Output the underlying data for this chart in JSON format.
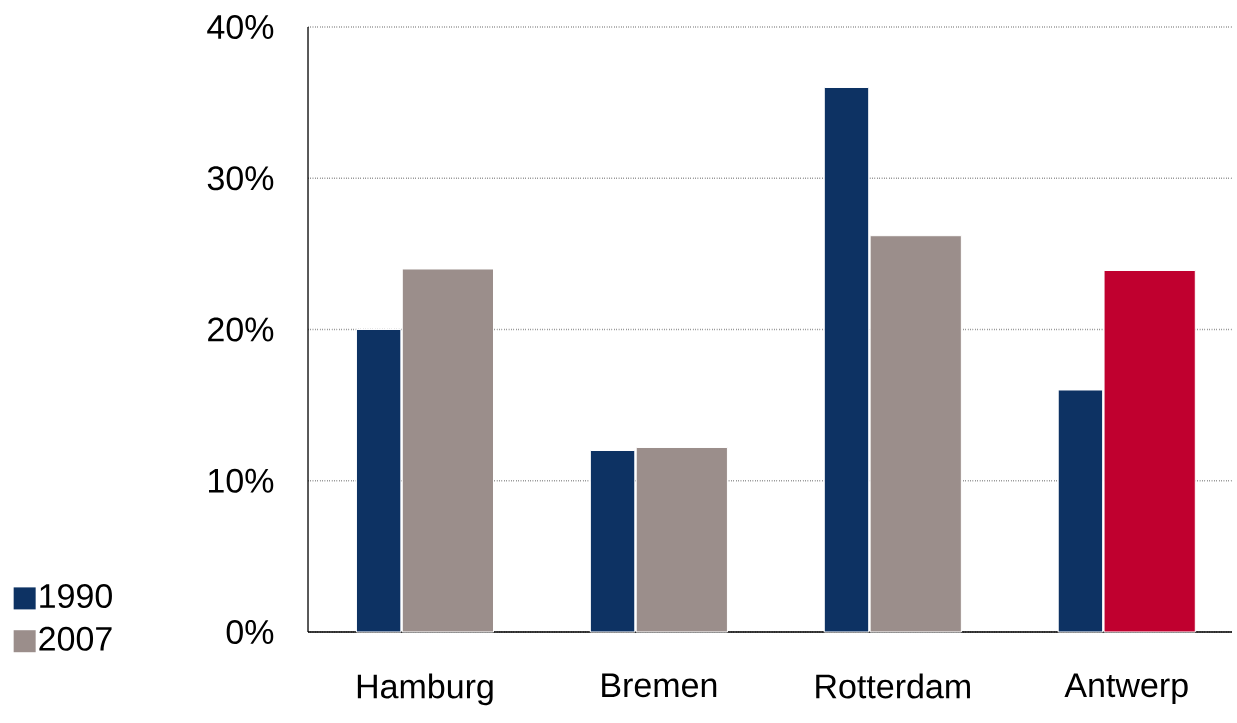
{
  "chart_data": {
    "type": "bar",
    "categories": [
      "Hamburg",
      "Bremen",
      "Rotterdam",
      "Antwerp"
    ],
    "series": [
      {
        "name": "1990",
        "color": "#0d3263",
        "values": [
          20,
          12,
          36,
          16
        ]
      },
      {
        "name": "2007",
        "color": "#9b8e8b",
        "colors": [
          "#9b8e8b",
          "#9b8e8b",
          "#9b8e8b",
          "#c0002f"
        ],
        "values": [
          24,
          12.2,
          26.2,
          23.9
        ]
      }
    ],
    "ylim": [
      0,
      40
    ],
    "yticks": [
      {
        "value": 0,
        "label": "0%"
      },
      {
        "value": 10,
        "label": "10%"
      },
      {
        "value": 20,
        "label": "20%"
      },
      {
        "value": 30,
        "label": "30%"
      },
      {
        "value": 40,
        "label": "40%"
      }
    ],
    "grid": "y",
    "legend": "left"
  }
}
